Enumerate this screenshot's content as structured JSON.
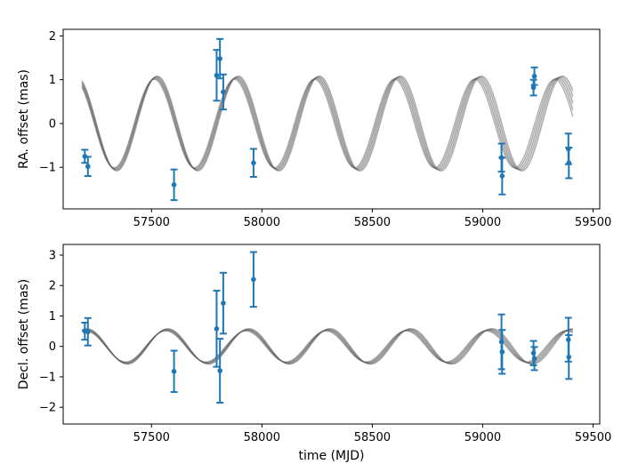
{
  "chart_data": [
    {
      "type": "scatter",
      "panel": "top",
      "xlabel": "",
      "ylabel": "RA. offset (mas)",
      "xlim": [
        57100,
        59530
      ],
      "ylim": [
        -1.95,
        2.15
      ],
      "xticks": [
        57500,
        58000,
        58500,
        59000,
        59500
      ],
      "yticks": [
        -1,
        0,
        1,
        2
      ],
      "xtick_labels": [
        "57500",
        "58000",
        "58500",
        "59000",
        "59500"
      ],
      "ytick_labels": [
        "−1",
        "0",
        "1",
        "2"
      ],
      "grid": false,
      "model": {
        "description_type": "sinusoid",
        "amplitude": 1.05,
        "period_days": 365.25,
        "phase_ref_mjd": 57155,
        "x_range": [
          57185,
          59410
        ]
      },
      "series": [
        {
          "color": "#1f77b4",
          "points": [
            {
              "x": 57198,
              "y": -0.75,
              "err": 0.15
            },
            {
              "x": 57212,
              "y": -0.98,
              "err": 0.22
            },
            {
              "x": 57602,
              "y": -1.4,
              "err": 0.35
            },
            {
              "x": 57795,
              "y": 1.1,
              "err": 0.58
            },
            {
              "x": 57810,
              "y": 1.48,
              "err": 0.45
            },
            {
              "x": 57825,
              "y": 0.72,
              "err": 0.4
            },
            {
              "x": 57962,
              "y": -0.9,
              "err": 0.32
            },
            {
              "x": 59085,
              "y": -0.78,
              "err": 0.32
            },
            {
              "x": 59088,
              "y": -1.2,
              "err": 0.42
            },
            {
              "x": 59230,
              "y": 0.82,
              "err": 0.18
            },
            {
              "x": 59234,
              "y": 1.08,
              "err": 0.2
            },
            {
              "x": 59388,
              "y": -0.58,
              "err": 0.35
            },
            {
              "x": 59390,
              "y": -0.9,
              "err": 0.35
            }
          ]
        }
      ]
    },
    {
      "type": "scatter",
      "panel": "bottom",
      "xlabel": "time (MJD)",
      "ylabel": "Decl. offset (mas)",
      "xlim": [
        57100,
        59530
      ],
      "ylim": [
        -2.55,
        3.35
      ],
      "xticks": [
        57500,
        58000,
        58500,
        59000,
        59500
      ],
      "yticks": [
        -2,
        -1,
        0,
        1,
        2,
        3
      ],
      "xtick_labels": [
        "57500",
        "58000",
        "58500",
        "59000",
        "59500"
      ],
      "ytick_labels": [
        "−2",
        "−1",
        "0",
        "1",
        "2",
        "3"
      ],
      "grid": false,
      "model": {
        "description_type": "sinusoid",
        "amplitude": 0.55,
        "period_days": 365.25,
        "phase_ref_mjd": 57570,
        "x_range": [
          57185,
          59410
        ]
      },
      "series": [
        {
          "color": "#1f77b4",
          "points": [
            {
              "x": 57198,
              "y": 0.5,
              "err": 0.28
            },
            {
              "x": 57212,
              "y": 0.48,
              "err": 0.45
            },
            {
              "x": 57602,
              "y": -0.82,
              "err": 0.68
            },
            {
              "x": 57795,
              "y": 0.58,
              "err": 1.25
            },
            {
              "x": 57810,
              "y": -0.8,
              "err": 1.05
            },
            {
              "x": 57825,
              "y": 1.42,
              "err": 1.0
            },
            {
              "x": 57962,
              "y": 2.2,
              "err": 0.9
            },
            {
              "x": 59085,
              "y": 0.15,
              "err": 0.9
            },
            {
              "x": 59088,
              "y": -0.18,
              "err": 0.72
            },
            {
              "x": 59230,
              "y": -0.22,
              "err": 0.4
            },
            {
              "x": 59234,
              "y": -0.4,
              "err": 0.38
            },
            {
              "x": 59388,
              "y": 0.22,
              "err": 0.72
            },
            {
              "x": 59390,
              "y": -0.35,
              "err": 0.72
            }
          ]
        }
      ]
    }
  ]
}
